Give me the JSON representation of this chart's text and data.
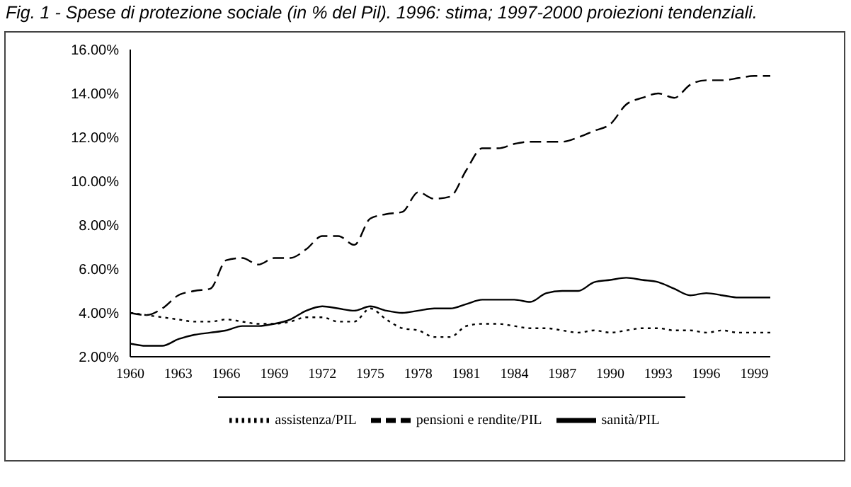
{
  "chart_data": {
    "type": "line",
    "title": "Fig. 1 - Spese di protezione sociale (in % del Pil). 1996: stima; 1997-2000 proiezioni tendenziali.",
    "x": [
      1960,
      1961,
      1962,
      1963,
      1964,
      1965,
      1966,
      1967,
      1968,
      1969,
      1970,
      1971,
      1972,
      1973,
      1974,
      1975,
      1976,
      1977,
      1978,
      1979,
      1980,
      1981,
      1982,
      1983,
      1984,
      1985,
      1986,
      1987,
      1988,
      1989,
      1990,
      1991,
      1992,
      1993,
      1994,
      1995,
      1996,
      1997,
      1998,
      1999,
      2000
    ],
    "series": [
      {
        "name": "sanità/PIL",
        "color": "#000000",
        "line_style": "solid",
        "values": [
          2.6,
          2.5,
          2.5,
          2.8,
          3.0,
          3.1,
          3.2,
          3.4,
          3.4,
          3.5,
          3.7,
          4.1,
          4.3,
          4.2,
          4.1,
          4.3,
          4.1,
          4.0,
          4.1,
          4.2,
          4.2,
          4.4,
          4.6,
          4.6,
          4.6,
          4.5,
          4.9,
          5.0,
          5.0,
          5.4,
          5.5,
          5.6,
          5.5,
          5.4,
          5.1,
          4.8,
          4.9,
          4.8,
          4.7,
          4.7,
          4.7
        ]
      },
      {
        "name": "pensioni e rendite/PIL",
        "color": "#000000",
        "line_style": "dashed",
        "values": [
          4.0,
          3.9,
          4.2,
          4.8,
          5.0,
          5.1,
          6.4,
          6.5,
          6.2,
          6.5,
          6.5,
          6.9,
          7.5,
          7.5,
          7.1,
          8.3,
          8.5,
          8.6,
          9.5,
          9.2,
          9.3,
          10.5,
          11.5,
          11.5,
          11.7,
          11.8,
          11.8,
          11.8,
          12.0,
          12.3,
          12.6,
          13.5,
          13.8,
          14.0,
          13.8,
          14.4,
          14.6,
          14.6,
          14.7,
          14.8,
          14.8
        ]
      },
      {
        "name": "assistenza/PIL",
        "color": "#000000",
        "line_style": "dotted",
        "values": [
          4.0,
          3.9,
          3.8,
          3.7,
          3.6,
          3.6,
          3.7,
          3.6,
          3.5,
          3.5,
          3.6,
          3.8,
          3.8,
          3.6,
          3.6,
          4.2,
          3.7,
          3.3,
          3.2,
          2.9,
          2.9,
          3.4,
          3.5,
          3.5,
          3.4,
          3.3,
          3.3,
          3.2,
          3.1,
          3.2,
          3.1,
          3.2,
          3.3,
          3.3,
          3.2,
          3.2,
          3.1,
          3.2,
          3.1,
          3.1,
          3.1
        ]
      }
    ],
    "xlim": [
      1960,
      2000
    ],
    "xticks": [
      1960,
      1963,
      1966,
      1969,
      1972,
      1975,
      1978,
      1981,
      1984,
      1987,
      1990,
      1993,
      1996,
      1999
    ],
    "ylim": [
      2,
      16
    ],
    "yticks": [
      {
        "value": 2,
        "label": "2.00%"
      },
      {
        "value": 4,
        "label": "4.00%"
      },
      {
        "value": 6,
        "label": "6.00%"
      },
      {
        "value": 8,
        "label": "8.00%"
      },
      {
        "value": 10,
        "label": "10.00%"
      },
      {
        "value": 12,
        "label": "12.00%"
      },
      {
        "value": 14,
        "label": "14.00%"
      },
      {
        "value": 16,
        "label": "16.00%"
      }
    ],
    "grid": false,
    "legend": "bottom"
  }
}
